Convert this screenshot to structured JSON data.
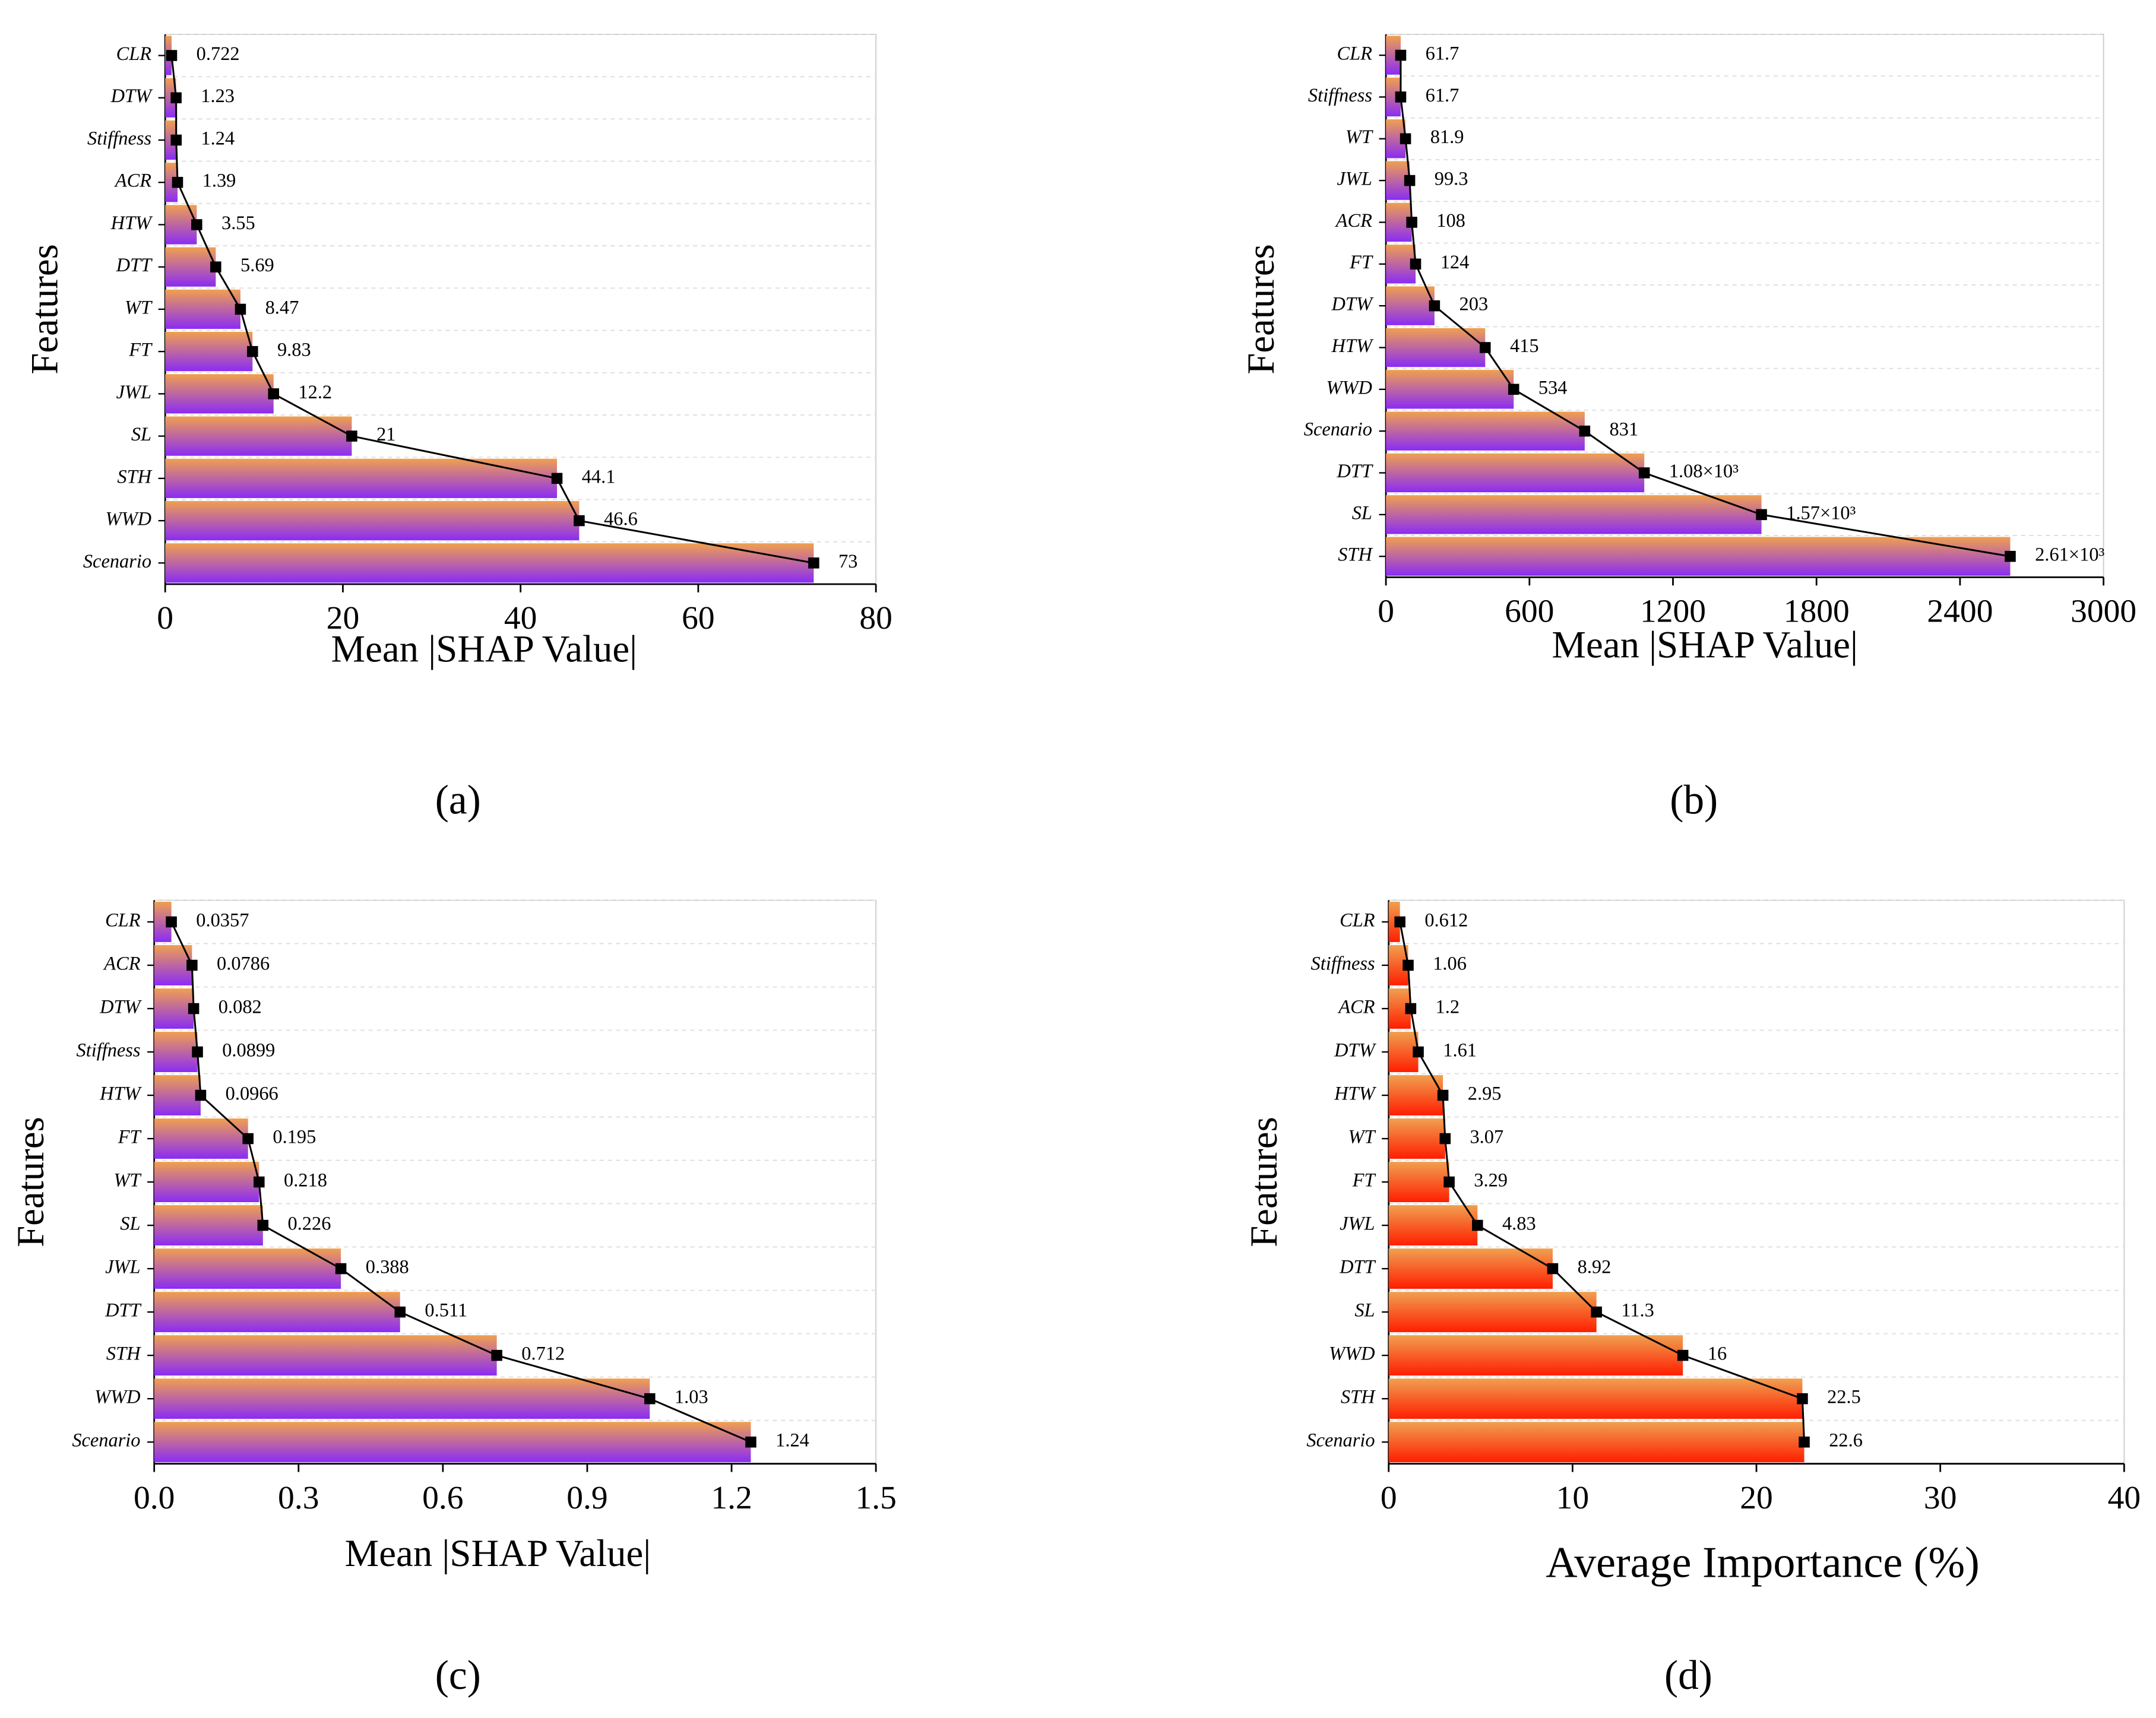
{
  "chart_data": [
    {
      "type": "bar",
      "label": "(a)",
      "x_label": "Mean |SHAP Value|",
      "y_label": "Features",
      "categories": [
        "CLR",
        "DTW",
        "Stiffness",
        "ACR",
        "HTW",
        "DTT",
        "WT",
        "FT",
        "JWL",
        "SL",
        "STH",
        "WWD",
        "Scenario"
      ],
      "values": [
        0.722,
        1.23,
        1.24,
        1.39,
        3.55,
        5.69,
        8.47,
        9.83,
        12.2,
        21,
        44.1,
        46.6,
        73
      ],
      "xlim": [
        0,
        80
      ],
      "xticks": [
        0,
        20,
        40,
        60,
        80
      ],
      "gradient": [
        "#f0a050",
        "#8a2cf5"
      ],
      "line_color": "#000000",
      "grid": true
    },
    {
      "type": "bar",
      "label": "(b)",
      "x_label": "Mean |SHAP Value|",
      "y_label": "Features",
      "categories": [
        "CLR",
        "Stiffness",
        "WT",
        "JWL",
        "ACR",
        "FT",
        "DTW",
        "HTW",
        "WWD",
        "Scenario",
        "DTT",
        "SL",
        "STH"
      ],
      "values": [
        61.7,
        61.7,
        81.9,
        99.3,
        108,
        124,
        203,
        415,
        534,
        831,
        1080,
        1570,
        2610
      ],
      "value_labels": [
        "61.7",
        "61.7",
        "81.9",
        "99.3",
        "108",
        "124",
        "203",
        "415",
        "534",
        "831",
        "1.08×10³",
        "1.57×10³",
        "2.61×10³"
      ],
      "xlim": [
        0,
        3000
      ],
      "xticks": [
        0,
        600,
        1200,
        1800,
        2400,
        3000
      ],
      "gradient": [
        "#f0a050",
        "#8a2cf5"
      ],
      "line_color": "#000000",
      "grid": true
    },
    {
      "type": "bar",
      "label": "(c)",
      "x_label": "Mean |SHAP Value|",
      "y_label": "Features",
      "categories": [
        "CLR",
        "ACR",
        "DTW",
        "Stiffness",
        "HTW",
        "FT",
        "WT",
        "SL",
        "JWL",
        "DTT",
        "STH",
        "WWD",
        "Scenario"
      ],
      "values": [
        0.0357,
        0.0786,
        0.082,
        0.0899,
        0.0966,
        0.195,
        0.218,
        0.226,
        0.388,
        0.511,
        0.712,
        1.03,
        1.24
      ],
      "xlim": [
        0,
        1.5
      ],
      "xticks": [
        {
          "value": 0,
          "label": "0.0"
        },
        0.3,
        0.6,
        0.9,
        1.2,
        1.5
      ],
      "gradient": [
        "#f0a050",
        "#8a2cf5"
      ],
      "line_color": "#000000",
      "grid": true
    },
    {
      "type": "bar",
      "label": "(d)",
      "x_label": "Average Importance (%)",
      "y_label": "Features",
      "categories": [
        "CLR",
        "Stiffness",
        "ACR",
        "DTW",
        "HTW",
        "WT",
        "FT",
        "JWL",
        "DTT",
        "SL",
        "WWD",
        "STH",
        "Scenario"
      ],
      "values": [
        0.612,
        1.06,
        1.2,
        1.61,
        2.95,
        3.07,
        3.29,
        4.83,
        8.92,
        11.3,
        16,
        22.5,
        22.6
      ],
      "xlim": [
        0,
        40
      ],
      "xticks": [
        0,
        10,
        20,
        30,
        40
      ],
      "gradient": [
        "#f0a050",
        "#ff1e00"
      ],
      "line_color": "#000000",
      "grid": true
    }
  ]
}
